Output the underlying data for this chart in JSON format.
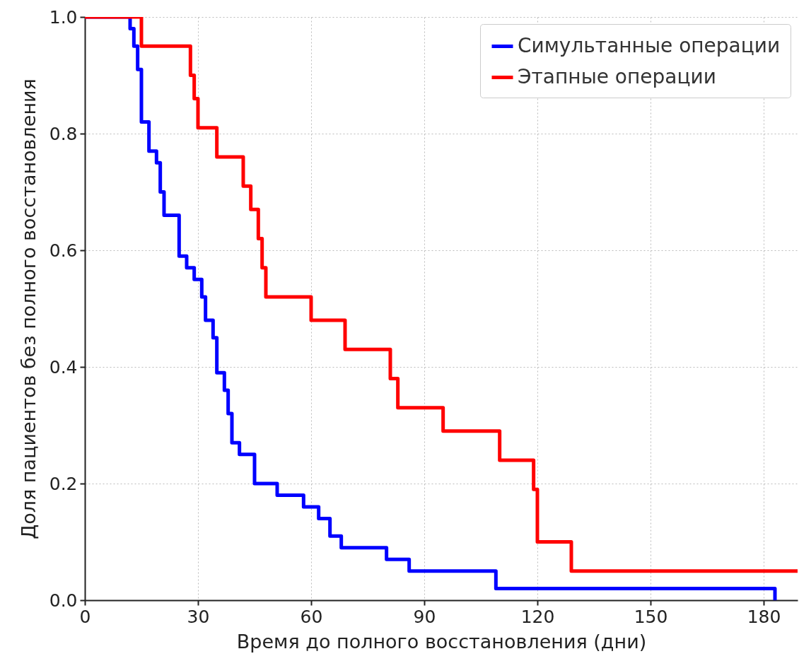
{
  "chart_data": {
    "type": "step",
    "xlabel": "Время до полного восстановления (дни)",
    "ylabel": "Доля пациентов без полного восстановления",
    "xlim": [
      0,
      189
    ],
    "xticks": [
      0,
      30,
      60,
      90,
      120,
      150,
      180
    ],
    "ylim": [
      0,
      1
    ],
    "yticks": [
      {
        "value": 0,
        "label": "0.0"
      },
      0.2,
      0.4,
      0.6,
      0.8,
      {
        "value": 1,
        "label": "1.0"
      }
    ],
    "grid": true,
    "legend": "top right",
    "line_style": "solid",
    "series": [
      {
        "name": "Симультанные операции",
        "color": "#0000ff",
        "x": [
          0,
          12,
          13,
          14,
          15,
          17,
          19,
          20,
          21,
          25,
          27,
          29,
          31,
          32,
          34,
          35,
          37,
          38,
          39,
          41,
          45,
          51,
          58,
          62,
          65,
          68,
          80,
          86,
          109,
          183
        ],
        "values": [
          1.0,
          0.98,
          0.95,
          0.91,
          0.82,
          0.77,
          0.75,
          0.7,
          0.66,
          0.59,
          0.57,
          0.55,
          0.52,
          0.48,
          0.45,
          0.39,
          0.36,
          0.32,
          0.27,
          0.25,
          0.2,
          0.18,
          0.16,
          0.14,
          0.11,
          0.09,
          0.07,
          0.05,
          0.02,
          0.0
        ]
      },
      {
        "name": "Этапные операции",
        "color": "#ff0000",
        "x": [
          0,
          15,
          28,
          29,
          30,
          35,
          42,
          44,
          46,
          47,
          48,
          60,
          69,
          81,
          83,
          95,
          110,
          119,
          120,
          129,
          189
        ],
        "values": [
          1.0,
          0.95,
          0.9,
          0.86,
          0.81,
          0.76,
          0.71,
          0.67,
          0.62,
          0.57,
          0.52,
          0.48,
          0.43,
          0.38,
          0.33,
          0.29,
          0.24,
          0.19,
          0.1,
          0.05,
          0.05
        ]
      }
    ]
  }
}
